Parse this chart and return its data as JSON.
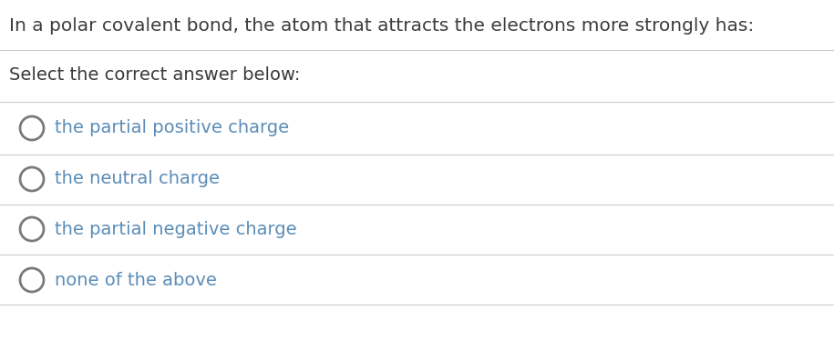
{
  "title": "In a polar covalent bond, the atom that attracts the electrons more strongly has:",
  "subtitle": "Select the correct answer below:",
  "options": [
    "the partial positive charge",
    "the neutral charge",
    "the partial negative charge",
    "none of the above"
  ],
  "title_color": "#3d3d3d",
  "subtitle_color": "#3a3a3a",
  "option_color": "#5b8db8",
  "circle_edge_color": "#7a7a7a",
  "bg_color": "#ffffff",
  "line_color": "#cccccc",
  "title_fontsize": 14.5,
  "subtitle_fontsize": 14,
  "option_fontsize": 14,
  "fig_width": 9.15,
  "fig_height": 3.85,
  "dpi": 100
}
